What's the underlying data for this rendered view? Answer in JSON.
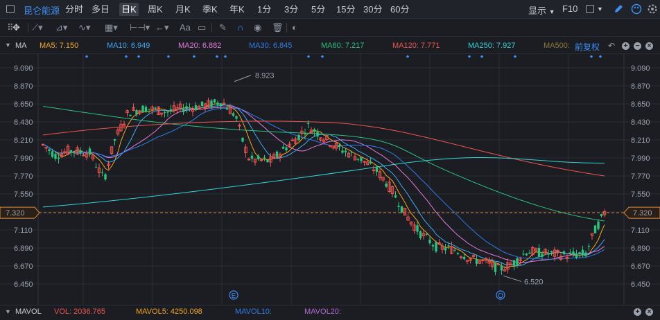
{
  "topbar": {
    "stock_name": "昆仑能源",
    "periods": [
      "分时",
      "多日",
      "日K",
      "周K",
      "月K",
      "季K",
      "年K",
      "1分",
      "3分",
      "5分",
      "15分",
      "30分",
      "60分"
    ],
    "active_period": "日K",
    "display_label": "显示",
    "f10_label": "F10"
  },
  "toolbar": {
    "font_label": "Aa"
  },
  "ma_bar": {
    "main_label": "MA",
    "items": [
      {
        "text": "MA5: 7.150",
        "color": "#f5a623"
      },
      {
        "text": "MA10: 6.949",
        "color": "#3fa9f5"
      },
      {
        "text": "MA20: 6.882",
        "color": "#e879e0"
      },
      {
        "text": "MA30: 6.845",
        "color": "#2f7de8"
      },
      {
        "text": "MA60: 7.217",
        "color": "#2ec27e"
      },
      {
        "text": "MA120: 7.771",
        "color": "#f0554f"
      },
      {
        "text": "MA250: 7.927",
        "color": "#33d6d6"
      },
      {
        "text": "MA500:",
        "color": "#8a7a3a"
      }
    ],
    "adjust_label": "前复权"
  },
  "chart": {
    "y_ticks": [
      "9.090",
      "8.870",
      "8.650",
      "8.430",
      "8.210",
      "7.990",
      "7.770",
      "7.550",
      "7.320",
      "7.110",
      "6.890",
      "6.670",
      "6.450"
    ],
    "current_price": "7.320",
    "high_label": "8.923",
    "low_label": "6.520",
    "event_markers": [
      "E",
      "Q"
    ],
    "colors": {
      "up": "#f0554f",
      "down": "#2ec27e",
      "grid": "#2a2e36",
      "current": "#e08a3c"
    }
  },
  "chart_data": {
    "type": "candlestick",
    "y_range": [
      6.33,
      9.19
    ],
    "indicators": [
      "MA5",
      "MA10",
      "MA20",
      "MA30",
      "MA60",
      "MA120",
      "MA250"
    ],
    "summary": {
      "max": 8.923,
      "min": 6.52,
      "last_close": 7.32
    }
  },
  "bottom": {
    "main_label": "MAVOL",
    "items": [
      {
        "text": "VOL: 2036.765",
        "color": "#f0554f"
      },
      {
        "text": "MAVOL5: 4250.098",
        "color": "#f5a623"
      },
      {
        "text": "MAVOL10:",
        "color": "#2f7de8"
      },
      {
        "text": "MAVOL20:",
        "color": "#b46ad8"
      }
    ]
  }
}
